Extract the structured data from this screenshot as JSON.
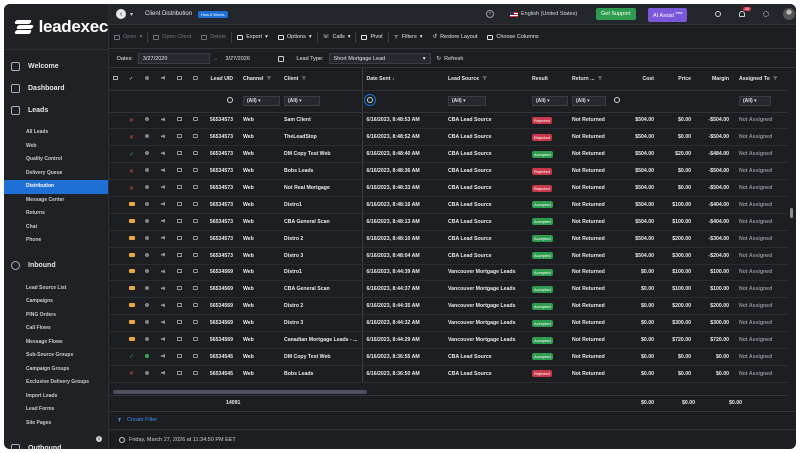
{
  "app": {
    "logo_text": "leadexec"
  },
  "sidebar": {
    "sections": [
      {
        "label": "Welcome",
        "icon": "home-icon"
      },
      {
        "label": "Dashboard",
        "icon": "dashboard-icon"
      },
      {
        "label": "Leads",
        "icon": "leads-icon",
        "items": [
          "All Leads",
          "Web",
          "Quality Control",
          "Delivery Queue",
          "Distribution",
          "Message Center",
          "Returns",
          "Chat",
          "Phone"
        ]
      },
      {
        "label": "Inbound",
        "icon": "inbound-icon",
        "items": [
          "Lead Source List",
          "Campaigns",
          "PING Orders",
          "Call Flows",
          "Message Flows",
          "Sub-Source Groups",
          "Campaign Groups",
          "Exclusive Delivery Groups",
          "Import Leads",
          "Lead Forms",
          "Site Pages"
        ]
      },
      {
        "label": "Outbound",
        "icon": "outbound-icon"
      }
    ],
    "active_item": "Distribution"
  },
  "topbar": {
    "title": "Client Distribution",
    "how_badge": "How it Works",
    "language": "English (United States)",
    "support_button": "Get Support",
    "ai_button": "AI Assist",
    "ai_sup": "beta",
    "notification_count": "46"
  },
  "toolbar": {
    "open": "Open",
    "open_client": "Open Client",
    "delete": "Delete",
    "export": "Export",
    "options": "Options",
    "calls": "Calls",
    "pivot": "Pivot",
    "filters": "Filters",
    "restore_layout": "Restore Layout",
    "choose_columns": "Choose Columns"
  },
  "filters": {
    "dates_label": "Dates:",
    "date_from": "3/27/2020",
    "date_to": "3/27/2026",
    "lead_type_label": "Lead Type:",
    "lead_type_value": "Short Mortgage Lead",
    "refresh": "Refresh"
  },
  "grid": {
    "columns": {
      "lead_uid": "Lead UID",
      "channel": "Channel",
      "client": "Client",
      "date_sent": "Date Sent",
      "lead_source": "Lead Source",
      "result": "Result",
      "return": "Return ...",
      "cost": "Cost",
      "price": "Price",
      "margin": "Margin",
      "assigned_to": "Assigned To"
    },
    "filter_all": "(All)",
    "rows": [
      {
        "status": "x",
        "uid": "56534573",
        "channel": "Web",
        "client": "Sam Client",
        "date": "6/16/2023, 8:48:53 AM",
        "source": "CBA Lead Source",
        "result": "Rejected",
        "ret": "Not Returned",
        "cost": "$504.00",
        "price": "$0.00",
        "margin": "-$504.00",
        "assigned": "Not Assigned"
      },
      {
        "status": "x",
        "uid": "56534573",
        "channel": "Web",
        "client": "TheLeadStop",
        "date": "6/16/2023, 8:48:52 AM",
        "source": "CBA Lead Source",
        "result": "Rejected",
        "ret": "Not Returned",
        "cost": "$504.00",
        "price": "$0.00",
        "margin": "-$504.00",
        "assigned": "Not Assigned"
      },
      {
        "status": "ok",
        "uid": "56534573",
        "channel": "Web",
        "client": "DM Copy Test Web",
        "date": "6/16/2023, 8:48:40 AM",
        "source": "CBA Lead Source",
        "result": "Accepted",
        "ret": "Not Returned",
        "cost": "$504.00",
        "price": "$20.00",
        "margin": "-$484.00",
        "assigned": "Not Assigned"
      },
      {
        "status": "x",
        "uid": "56534573",
        "channel": "Web",
        "client": "Bobs Leads",
        "date": "6/16/2023, 8:48:36 AM",
        "source": "CBA Lead Source",
        "result": "Rejected",
        "ret": "Not Returned",
        "cost": "$504.00",
        "price": "$0.00",
        "margin": "-$504.00",
        "assigned": "Not Assigned"
      },
      {
        "status": "x",
        "uid": "56534573",
        "channel": "Web",
        "client": "Not Real Mortgage",
        "date": "6/16/2023, 8:48:33 AM",
        "source": "CBA Lead Source",
        "result": "Rejected",
        "ret": "Not Returned",
        "cost": "$504.00",
        "price": "$0.00",
        "margin": "-$504.00",
        "assigned": "Not Assigned"
      },
      {
        "status": "folder",
        "uid": "56534573",
        "channel": "Web",
        "client": "Distro1",
        "date": "6/16/2023, 8:48:16 AM",
        "source": "CBA Lead Source",
        "result": "Accepted",
        "ret": "Not Returned",
        "cost": "$504.00",
        "price": "$100.00",
        "margin": "-$404.00",
        "assigned": "Not Assigned"
      },
      {
        "status": "folder",
        "uid": "56534573",
        "channel": "Web",
        "client": "CBA General Scan",
        "date": "6/16/2023, 8:48:13 AM",
        "source": "CBA Lead Source",
        "result": "Accepted",
        "ret": "Not Returned",
        "cost": "$504.00",
        "price": "$100.00",
        "margin": "-$404.00",
        "assigned": "Not Assigned"
      },
      {
        "status": "folder",
        "uid": "56534573",
        "channel": "Web",
        "client": "Distro 2",
        "date": "6/16/2023, 8:48:10 AM",
        "source": "CBA Lead Source",
        "result": "Accepted",
        "ret": "Not Returned",
        "cost": "$504.00",
        "price": "$200.00",
        "margin": "-$304.00",
        "assigned": "Not Assigned"
      },
      {
        "status": "folder",
        "uid": "56534573",
        "channel": "Web",
        "client": "Distro 3",
        "date": "6/16/2023, 8:48:04 AM",
        "source": "CBA Lead Source",
        "result": "Accepted",
        "ret": "Not Returned",
        "cost": "$504.00",
        "price": "$300.00",
        "margin": "-$204.00",
        "assigned": "Not Assigned"
      },
      {
        "status": "folder",
        "uid": "56534569",
        "channel": "Web",
        "client": "Distro1",
        "date": "6/16/2023, 8:44:39 AM",
        "source": "Vancouver Mortgage Leads",
        "result": "Accepted",
        "ret": "Not Returned",
        "cost": "$0.00",
        "price": "$100.00",
        "margin": "$100.00",
        "assigned": "Not Assigned"
      },
      {
        "status": "folder",
        "uid": "56534569",
        "channel": "Web",
        "client": "CBA General Scan",
        "date": "6/16/2023, 8:44:37 AM",
        "source": "Vancouver Mortgage Leads",
        "result": "Accepted",
        "ret": "Not Returned",
        "cost": "$0.00",
        "price": "$100.00",
        "margin": "$100.00",
        "assigned": "Not Assigned"
      },
      {
        "status": "folder",
        "uid": "56534569",
        "channel": "Web",
        "client": "Distro 2",
        "date": "6/16/2023, 8:44:35 AM",
        "source": "Vancouver Mortgage Leads",
        "result": "Accepted",
        "ret": "Not Returned",
        "cost": "$0.00",
        "price": "$200.00",
        "margin": "$200.00",
        "assigned": "Not Assigned"
      },
      {
        "status": "folder",
        "uid": "56534569",
        "channel": "Web",
        "client": "Distro 3",
        "date": "6/16/2023, 8:44:32 AM",
        "source": "Vancouver Mortgage Leads",
        "result": "Accepted",
        "ret": "Not Returned",
        "cost": "$0.00",
        "price": "$300.00",
        "margin": "$300.00",
        "assigned": "Not Assigned"
      },
      {
        "status": "folder",
        "uid": "56534569",
        "channel": "Web",
        "client": "Canadian Mortgage Leads - ...",
        "date": "6/16/2023, 8:44:29 AM",
        "source": "Vancouver Mortgage Leads",
        "result": "Accepted",
        "ret": "Not Returned",
        "cost": "$0.00",
        "price": "$720.00",
        "margin": "$720.00",
        "assigned": "Not Assigned"
      },
      {
        "status": "ok",
        "uid": "56534545",
        "channel": "Web",
        "client": "DM Copy Test Web",
        "date": "6/16/2023, 8:36:55 AM",
        "source": "CBA Lead Source",
        "result": "Accepted",
        "ret": "Not Returned",
        "cost": "$0.00",
        "price": "$0.00",
        "margin": "$0.00",
        "assigned": "Not Assigned"
      },
      {
        "status": "x",
        "uid": "56534545",
        "channel": "Web",
        "client": "Bobs Leads",
        "date": "6/16/2023, 8:36:50 AM",
        "source": "CBA Lead Source",
        "result": "Rejected",
        "ret": "Not Returned",
        "cost": "$0.00",
        "price": "$0.00",
        "margin": "$0.00",
        "assigned": "Not Assigned"
      }
    ],
    "totals": {
      "count": "14091",
      "cost": "$0.00",
      "price": "$0.00",
      "margin": "$0.00"
    }
  },
  "footer": {
    "create_filter": "Create Filter",
    "datetime": "Friday, March 27, 2026 at 11:34:50 PM EET"
  },
  "colors": {
    "accent": "#1e6fd6",
    "accepted": "#2e9c4f",
    "rejected": "#c9384a",
    "folder": "#e9a93a"
  }
}
